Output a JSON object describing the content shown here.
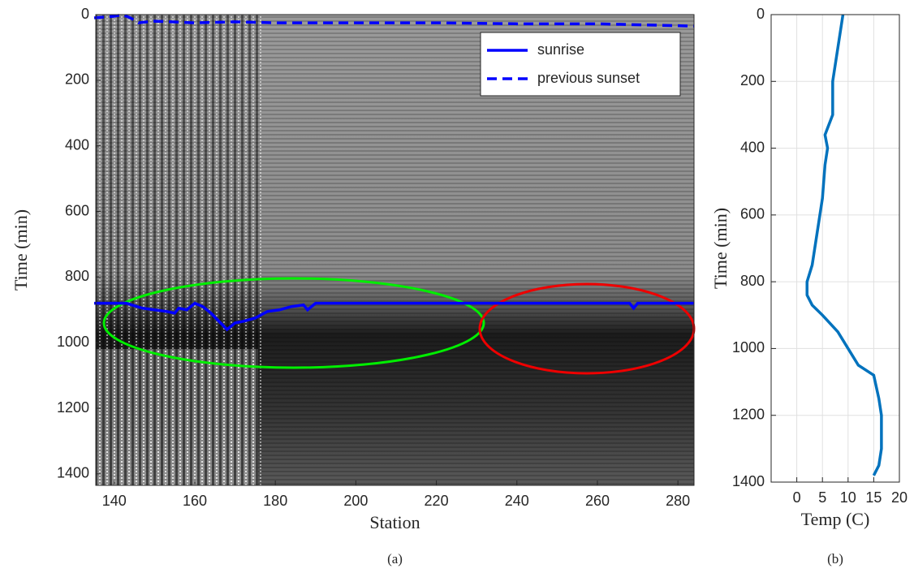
{
  "chart_data": [
    {
      "type": "line",
      "caption": "(a)",
      "x_label": "Station",
      "y_label": "Time (min)",
      "xlim": [
        135.4,
        284
      ],
      "xticks": [
        140,
        160,
        180,
        200,
        220,
        240,
        260,
        280
      ],
      "ylim": [
        0,
        1435
      ],
      "yticks": [
        0,
        200,
        400,
        600,
        800,
        1000,
        1200,
        1400
      ],
      "y_reversed": true,
      "grid": false,
      "legend": "upper right",
      "series": [
        {
          "name": "sunrise",
          "color": "#0000ff",
          "linestyle": "solid",
          "x": [
            135,
            143,
            147,
            150,
            153,
            155,
            156,
            158,
            160,
            162,
            164,
            166,
            168,
            170,
            172,
            175,
            178,
            181,
            184,
            187,
            188,
            190,
            200,
            215,
            230,
            250,
            268,
            269,
            270,
            284
          ],
          "values": [
            880,
            880,
            895,
            900,
            905,
            910,
            895,
            900,
            880,
            890,
            910,
            935,
            960,
            940,
            935,
            925,
            905,
            900,
            890,
            885,
            900,
            880,
            880,
            880,
            880,
            880,
            880,
            895,
            880,
            880
          ]
        },
        {
          "name": "previous sunset",
          "color": "#0000ff",
          "linestyle": "dashed",
          "x": [
            135,
            140,
            142,
            144,
            146,
            150,
            160,
            170,
            180,
            200,
            220,
            240,
            260,
            284
          ],
          "values": [
            10,
            5,
            0,
            10,
            25,
            20,
            25,
            22,
            25,
            25,
            25,
            28,
            28,
            35
          ]
        }
      ]
    },
    {
      "type": "line",
      "caption": "(b)",
      "x_label": "Temp (C)",
      "y_label": "Time (min)",
      "xlim": [
        -5,
        20
      ],
      "xticks": [
        0,
        5,
        10,
        15,
        20
      ],
      "ylim": [
        0,
        1400
      ],
      "yticks": [
        0,
        200,
        400,
        600,
        800,
        1000,
        1200,
        1400
      ],
      "y_reversed": true,
      "grid": true,
      "series": [
        {
          "color": "#0072bd",
          "linestyle": "solid",
          "x": [
            9,
            8,
            7,
            7,
            5.5,
            6,
            5.5,
            5,
            4,
            3,
            2,
            2,
            3,
            5,
            8,
            10,
            12,
            15,
            16,
            16.5,
            16.5,
            16,
            15
          ],
          "values": [
            0,
            100,
            200,
            300,
            360,
            400,
            450,
            550,
            650,
            750,
            800,
            840,
            870,
            900,
            950,
            1000,
            1050,
            1080,
            1150,
            1200,
            1300,
            1350,
            1380
          ]
        }
      ]
    }
  ]
}
